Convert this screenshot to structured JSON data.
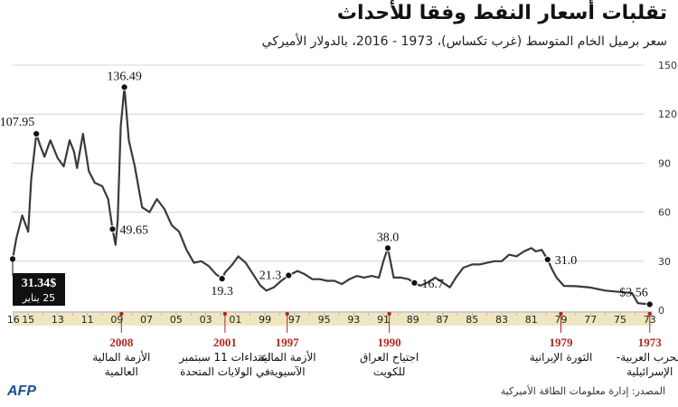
{
  "header": {
    "title": "تقلبات أسعار النفط وفقا للأحداث",
    "subtitle": "سعر برميل الخام المتوسط (غرب تكساس)، 1973 - 2016، بالدولار الأميركي"
  },
  "footer": {
    "source": "المصدر: إدارة معلومات الطاقة الأميركية",
    "logo": "AFP"
  },
  "chart_data": {
    "type": "line",
    "x_direction": "right-to-left",
    "y_ticks": [
      "150$",
      "120",
      "90",
      "60",
      "30",
      "0"
    ],
    "ylim": [
      0,
      150
    ],
    "x_tick_labels": [
      "16",
      "15",
      "13",
      "11",
      "09",
      "07",
      "05",
      "03",
      "01",
      "99",
      "97",
      "95",
      "93",
      "91",
      "89",
      "87",
      "85",
      "83",
      "81",
      "79",
      "77",
      "75",
      "73"
    ],
    "grid": true,
    "series": [
      {
        "points": [
          [
            1973.0,
            3.6
          ],
          [
            1973.8,
            4.3
          ],
          [
            1974.2,
            10.5
          ],
          [
            1975.0,
            11.2
          ],
          [
            1976.0,
            12.0
          ],
          [
            1977.0,
            13.9
          ],
          [
            1978.0,
            14.7
          ],
          [
            1978.8,
            14.9
          ],
          [
            1979.3,
            20
          ],
          [
            1979.6,
            25
          ],
          [
            1979.9,
            31.0
          ],
          [
            1980.3,
            37
          ],
          [
            1980.7,
            36
          ],
          [
            1981.0,
            38.0
          ],
          [
            1981.5,
            36
          ],
          [
            1982.0,
            33
          ],
          [
            1982.5,
            34
          ],
          [
            1983.0,
            30
          ],
          [
            1983.5,
            30
          ],
          [
            1984.0,
            29
          ],
          [
            1984.5,
            28
          ],
          [
            1985.0,
            28
          ],
          [
            1985.6,
            26
          ],
          [
            1986.1,
            20
          ],
          [
            1986.5,
            14
          ],
          [
            1987.0,
            17
          ],
          [
            1987.5,
            20
          ],
          [
            1988.0,
            17
          ],
          [
            1988.5,
            15
          ],
          [
            1988.9,
            16.7
          ],
          [
            1989.3,
            19
          ],
          [
            1989.8,
            20
          ],
          [
            1990.3,
            20
          ],
          [
            1990.7,
            38.0
          ],
          [
            1991.0,
            30
          ],
          [
            1991.3,
            20
          ],
          [
            1991.8,
            21
          ],
          [
            1992.3,
            20
          ],
          [
            1992.8,
            21
          ],
          [
            1993.3,
            19
          ],
          [
            1993.8,
            16
          ],
          [
            1994.3,
            18
          ],
          [
            1994.8,
            18
          ],
          [
            1995.3,
            19
          ],
          [
            1995.8,
            19
          ],
          [
            1996.3,
            22
          ],
          [
            1996.8,
            24
          ],
          [
            1997.4,
            21.3
          ],
          [
            1997.9,
            18
          ],
          [
            1998.4,
            14
          ],
          [
            1998.9,
            12
          ],
          [
            1999.3,
            15
          ],
          [
            1999.8,
            22
          ],
          [
            2000.3,
            29
          ],
          [
            2000.8,
            33
          ],
          [
            2001.2,
            28
          ],
          [
            2001.7,
            23
          ],
          [
            2001.9,
            19.3
          ],
          [
            2002.3,
            22
          ],
          [
            2002.8,
            27
          ],
          [
            2003.3,
            30
          ],
          [
            2003.8,
            29
          ],
          [
            2004.3,
            37
          ],
          [
            2004.8,
            48
          ],
          [
            2005.3,
            52
          ],
          [
            2005.8,
            62
          ],
          [
            2006.3,
            68
          ],
          [
            2006.8,
            60
          ],
          [
            2007.3,
            63
          ],
          [
            2007.8,
            88
          ],
          [
            2008.2,
            104
          ],
          [
            2008.5,
            136.49
          ],
          [
            2008.75,
            112
          ],
          [
            2008.95,
            55
          ],
          [
            2009.1,
            40
          ],
          [
            2009.3,
            49.65
          ],
          [
            2009.6,
            68
          ],
          [
            2010.0,
            76
          ],
          [
            2010.5,
            78
          ],
          [
            2010.9,
            85
          ],
          [
            2011.3,
            108
          ],
          [
            2011.7,
            87
          ],
          [
            2011.9,
            97
          ],
          [
            2012.2,
            104
          ],
          [
            2012.6,
            88
          ],
          [
            2013.0,
            93
          ],
          [
            2013.5,
            104
          ],
          [
            2013.9,
            94
          ],
          [
            2014.2,
            101
          ],
          [
            2014.45,
            107.95
          ],
          [
            2014.8,
            80
          ],
          [
            2015.0,
            48
          ],
          [
            2015.4,
            58
          ],
          [
            2015.8,
            44
          ],
          [
            2016.05,
            31.34
          ]
        ]
      }
    ],
    "annotations": [
      {
        "x": 1973.0,
        "y": 3.6,
        "label": "$3.56",
        "side": "above-left"
      },
      {
        "x": 1979.9,
        "y": 31.0,
        "label": "31.0",
        "side": "right"
      },
      {
        "x": 1990.7,
        "y": 38.0,
        "label": "38.0",
        "side": "above"
      },
      {
        "x": 1988.9,
        "y": 16.7,
        "label": "16.7",
        "side": "right"
      },
      {
        "x": 1997.4,
        "y": 21.3,
        "label": "21.3",
        "side": "left"
      },
      {
        "x": 2001.9,
        "y": 19.3,
        "label": "19.3",
        "side": "below"
      },
      {
        "x": 2008.5,
        "y": 136.49,
        "label": "136.49",
        "side": "above"
      },
      {
        "x": 2009.3,
        "y": 49.65,
        "label": "49.65",
        "side": "right"
      },
      {
        "x": 2014.45,
        "y": 107.95,
        "label": "107.95",
        "side": "above-left"
      }
    ],
    "current": {
      "value": "31.34$",
      "date": "25 يناير"
    },
    "events": [
      {
        "year": "1973",
        "lines": [
          "الحرب العربية-",
          "الإسرائيلية"
        ],
        "x": 1973.0
      },
      {
        "year": "1979",
        "lines": [
          "الثورة الإيرانية"
        ],
        "x": 1979.0
      },
      {
        "year": "1990",
        "lines": [
          "اجتياح العراق",
          "للكويت"
        ],
        "x": 1990.6
      },
      {
        "year": "1997",
        "lines": [
          "الأزمة المالية",
          "الآسيوية"
        ],
        "x": 1997.5
      },
      {
        "year": "2001",
        "lines": [
          "اعتداءات 11 سبتمبر",
          "في الولايات المتحدة"
        ],
        "x": 2001.7
      },
      {
        "year": "2008",
        "lines": [
          "الأزمة المالية",
          "العالمية"
        ],
        "x": 2008.7
      }
    ]
  }
}
